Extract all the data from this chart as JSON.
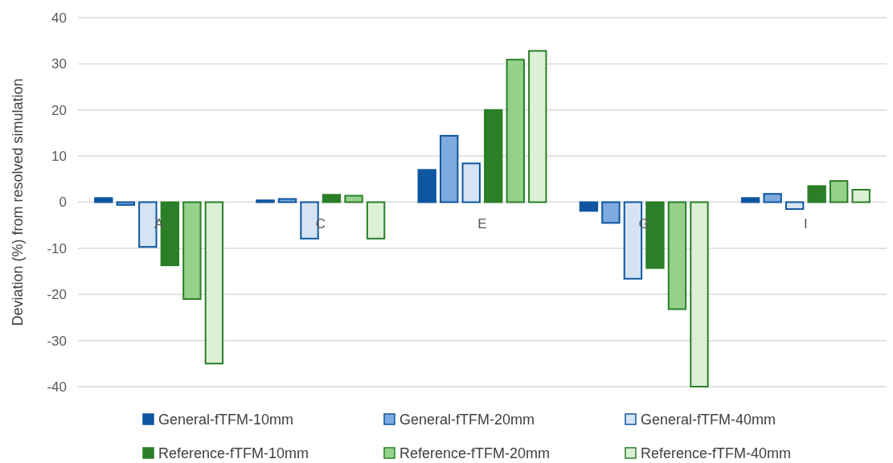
{
  "chart_data": {
    "type": "bar",
    "ylabel": "Deviation (%) from resolved simulation",
    "categories": [
      "A",
      "C",
      "E",
      "G",
      "I"
    ],
    "series": [
      {
        "name": "General-fTFM-10mm",
        "color": "#0e56a0",
        "values": [
          0.9,
          0.4,
          7.0,
          -1.9,
          0.9
        ]
      },
      {
        "name": "General-fTFM-20mm",
        "color": "#7eaadf",
        "values": [
          -0.6,
          0.7,
          14.4,
          -4.5,
          1.8
        ]
      },
      {
        "name": "General-fTFM-40mm",
        "color": "#d6e3f3",
        "values": [
          -9.7,
          -7.9,
          8.4,
          -16.6,
          -1.5
        ]
      },
      {
        "name": "Reference-fTFM-10mm",
        "color": "#2a7f27",
        "values": [
          -13.7,
          1.6,
          20.0,
          -14.3,
          3.5
        ]
      },
      {
        "name": "Reference-fTFM-20mm",
        "color": "#95d18b",
        "values": [
          -21.0,
          1.4,
          30.9,
          -23.2,
          4.6
        ]
      },
      {
        "name": "Reference-fTFM-40mm",
        "color": "#dcf0d6",
        "values": [
          -35.0,
          -7.9,
          32.8,
          -40.0,
          2.7
        ]
      }
    ],
    "ylim": [
      -40,
      40
    ],
    "yticks": [
      -40,
      -30,
      -20,
      -10,
      0,
      10,
      20,
      30,
      40
    ],
    "grid": "y",
    "legend": "bottom"
  }
}
